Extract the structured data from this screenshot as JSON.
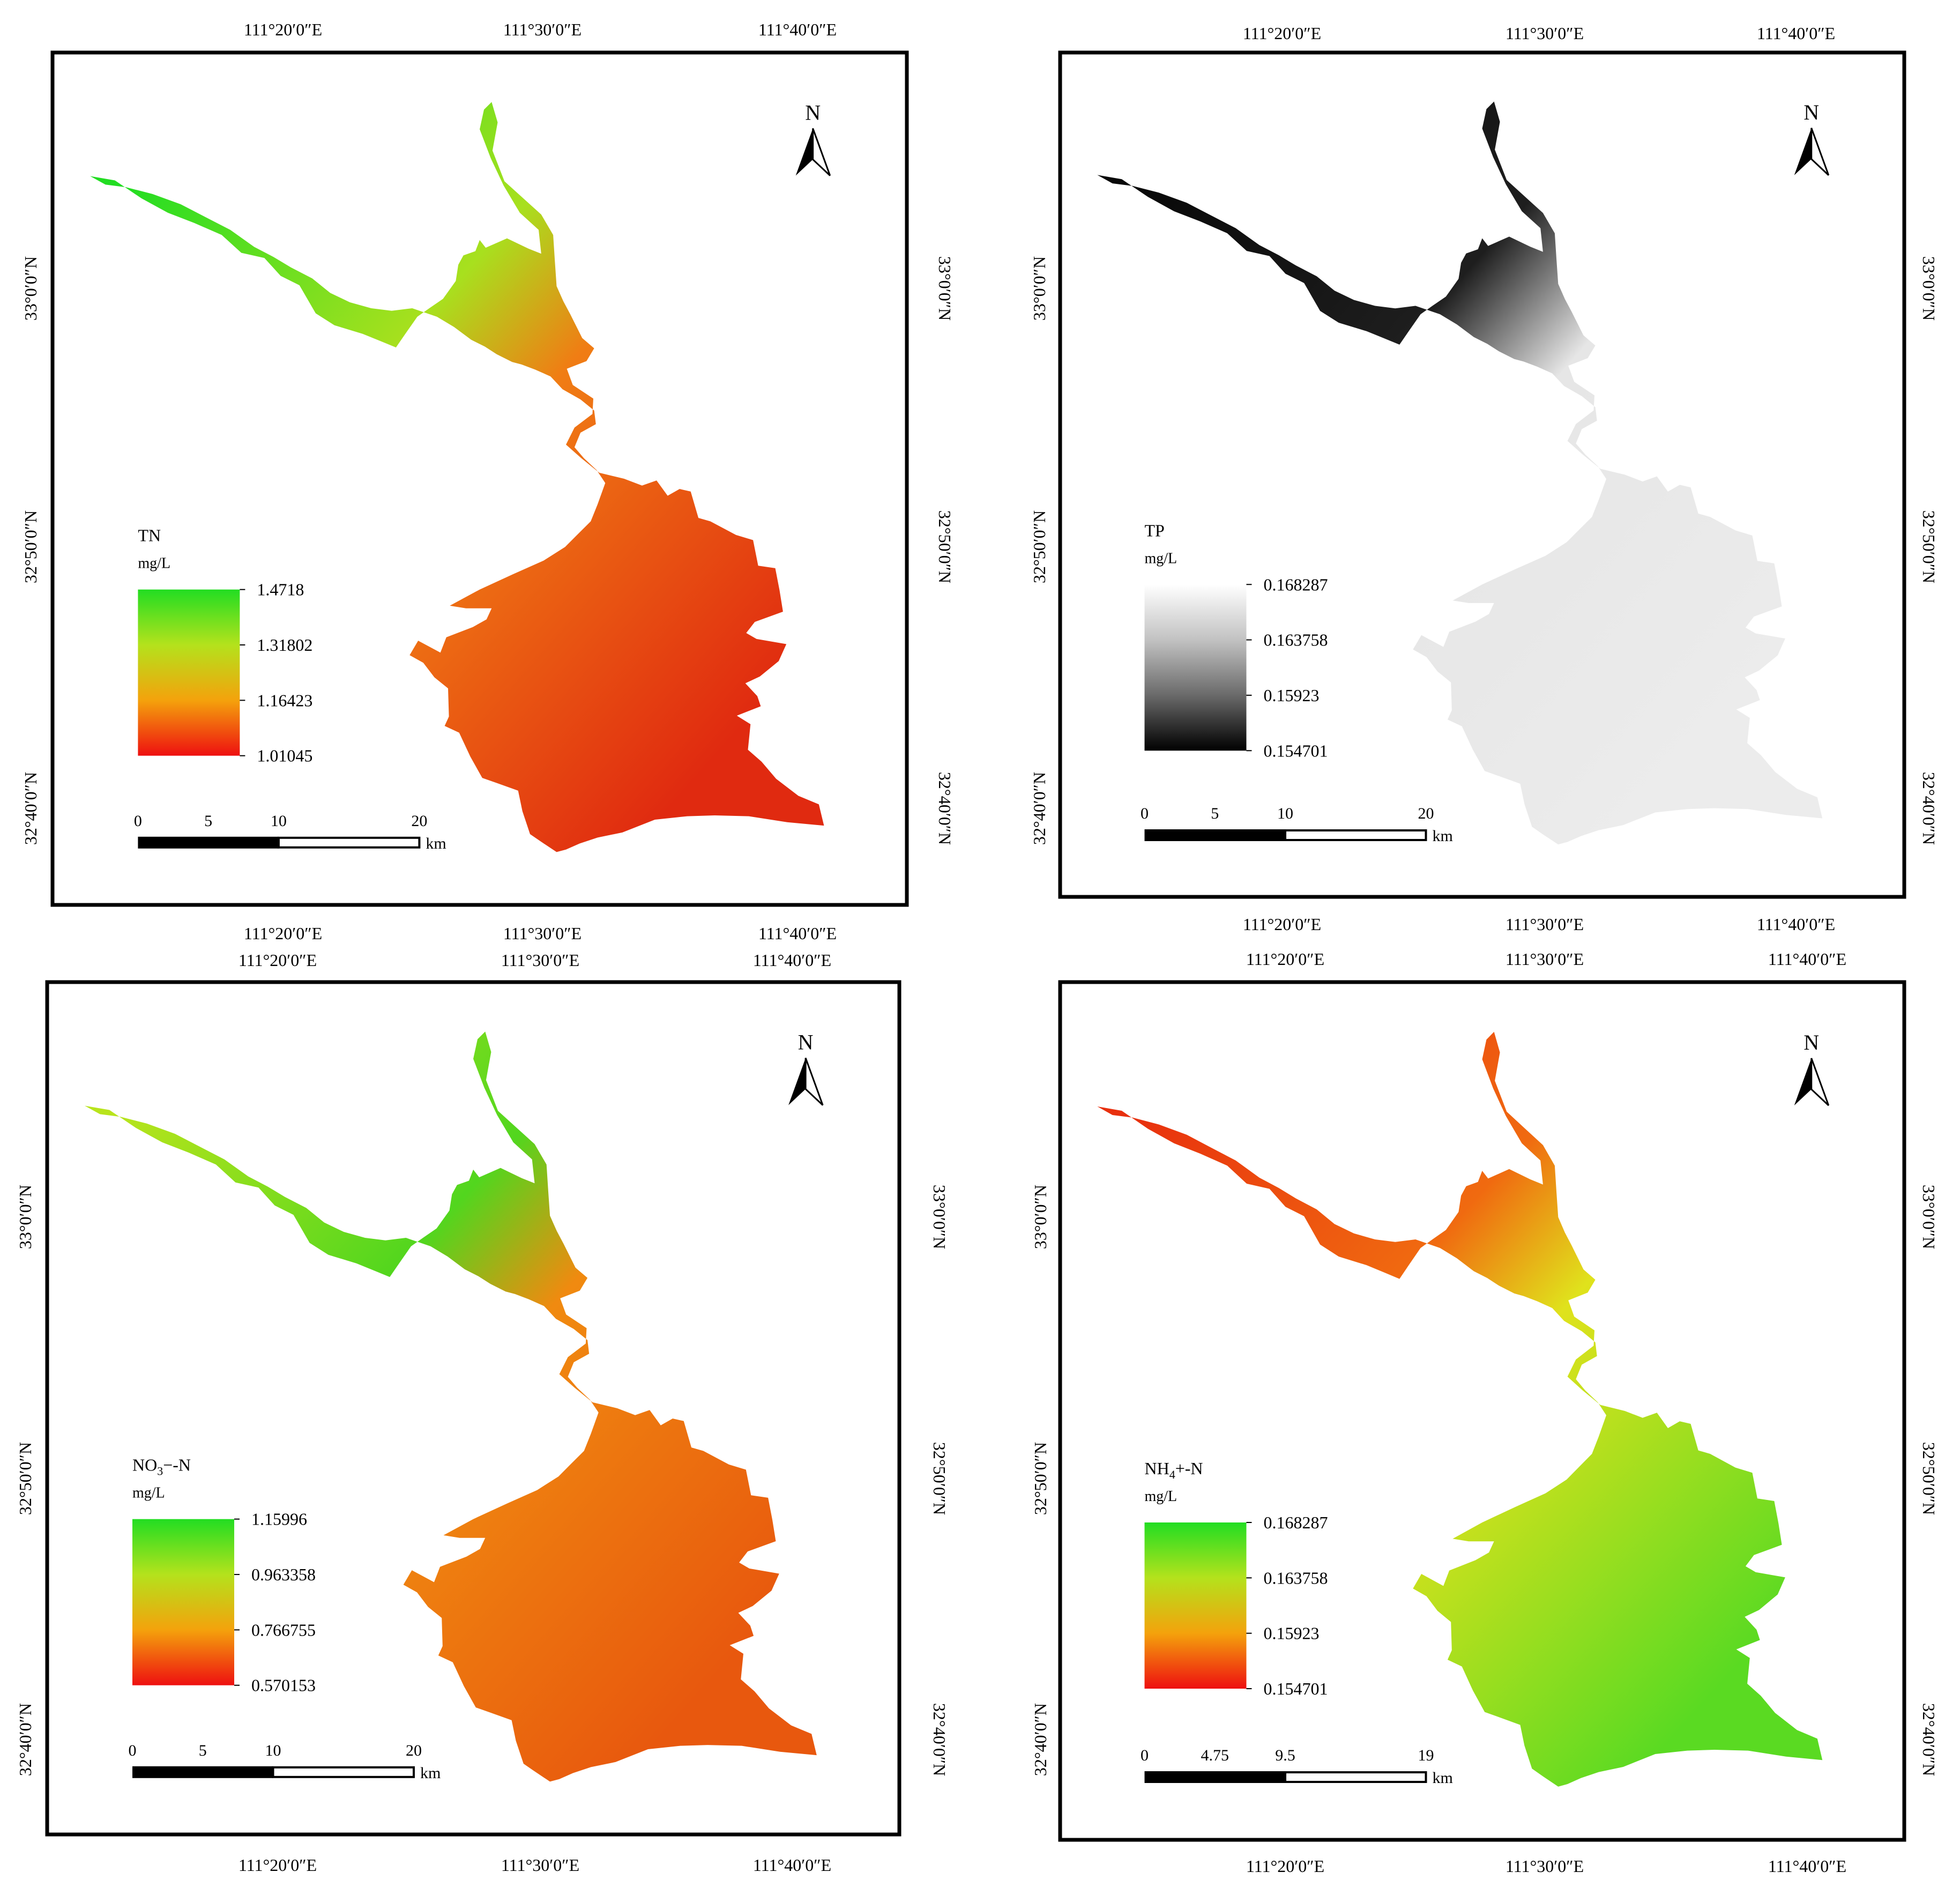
{
  "panels": [
    {
      "id": "tn",
      "title": "TN",
      "title_sub": "",
      "title_suffix": "",
      "unit": "mg/L",
      "top_lon_labels": [
        "111°20′0″E",
        "111°30′0″E",
        "111°40′0″E"
      ],
      "bottom_lon_labels": [
        "111°20′0″E",
        "111°30′0″E",
        "111°40′0″E"
      ],
      "left_lat_labels": [
        "33°0′0″N",
        "32°50′0″N",
        "32°40′0″N"
      ],
      "right_lat_labels": [
        "33°0′0″N",
        "32°50′0″N",
        "32°40′0″N"
      ],
      "legend_values": [
        "1.4718",
        "1.31802",
        "1.16423",
        "1.01045"
      ],
      "legend_colors": [
        "#22dd22",
        "#b4e21c",
        "#f4a20c",
        "#ee1010"
      ],
      "scale_labels": [
        "0",
        "5",
        "10",
        "20"
      ],
      "scale_unit": "km",
      "north_label": "N",
      "lake_fill": [
        "#22dd22",
        "#a8e01e",
        "#f07d14",
        "#e02a10"
      ]
    },
    {
      "id": "tp",
      "title": "TP",
      "title_sub": "",
      "title_suffix": "",
      "unit": "mg/L",
      "top_lon_labels": [
        "111°20′0″E",
        "111°30′0″E",
        "111°40′0″E"
      ],
      "bottom_lon_labels": [
        "111°20′0″E",
        "111°30′0″E",
        "111°40′0″E"
      ],
      "left_lat_labels": [
        "33°0′0″N",
        "32°50′0″N",
        "32°40′0″N"
      ],
      "right_lat_labels": [
        "33°0′0″N",
        "32°50′0″N",
        "32°40′0″N"
      ],
      "legend_values": [
        "0.168287",
        "0.163758",
        "0.15923",
        "0.154701"
      ],
      "legend_colors": [
        "#ffffff",
        "#c2c2c2",
        "#6a6a6a",
        "#000000"
      ],
      "scale_labels": [
        "0",
        "5",
        "10",
        "20"
      ],
      "scale_unit": "km",
      "north_label": "N",
      "lake_fill": [
        "#080808",
        "#1e1e1e",
        "#e6e6e6",
        "#ececec"
      ]
    },
    {
      "id": "no3",
      "title": "NO",
      "title_sub": "3",
      "title_suffix": "−-N",
      "unit": "mg/L",
      "top_lon_labels": [
        "111°20′0″E",
        "111°30′0″E",
        "111°40′0″E"
      ],
      "bottom_lon_labels": [
        "111°20′0″E",
        "111°30′0″E",
        "111°40′0″E"
      ],
      "left_lat_labels": [
        "33°0′0″N",
        "32°50′0″N",
        "32°40′0″N"
      ],
      "right_lat_labels": [
        "33°0′0″N",
        "32°50′0″N",
        "32°40′0″N"
      ],
      "legend_values": [
        "1.15996",
        "0.963358",
        "0.766755",
        "0.570153"
      ],
      "legend_colors": [
        "#22dd22",
        "#b4e21c",
        "#f4a20c",
        "#ee1010"
      ],
      "scale_labels": [
        "0",
        "5",
        "10",
        "20"
      ],
      "scale_unit": "km",
      "north_label": "N",
      "lake_fill": [
        "#b8e41c",
        "#52d61e",
        "#f08a10",
        "#e8580e"
      ]
    },
    {
      "id": "nh4",
      "title": "NH",
      "title_sub": "4",
      "title_suffix": "+-N",
      "unit": "mg/L",
      "top_lon_labels": [
        "111°20′0″E",
        "111°30′0″E",
        "111°40′0″E"
      ],
      "bottom_lon_labels": [
        "111°20′0″E",
        "111°30′0″E",
        "111°40′0″E"
      ],
      "left_lat_labels": [
        "33°0′0″N",
        "32°50′0″N",
        "32°40′0″N"
      ],
      "right_lat_labels": [
        "33°0′0″N",
        "32°50′0″N",
        "32°40′0″N"
      ],
      "legend_values": [
        "0.168287",
        "0.163758",
        "0.15923",
        "0.154701"
      ],
      "legend_colors": [
        "#22dd22",
        "#b4e21c",
        "#f4a20c",
        "#ee1010"
      ],
      "scale_labels": [
        "0",
        "4.75",
        "9.5",
        "19"
      ],
      "scale_unit": "km",
      "north_label": "N",
      "lake_fill": [
        "#e8300e",
        "#f06a10",
        "#e0e21c",
        "#5ada22"
      ]
    }
  ]
}
